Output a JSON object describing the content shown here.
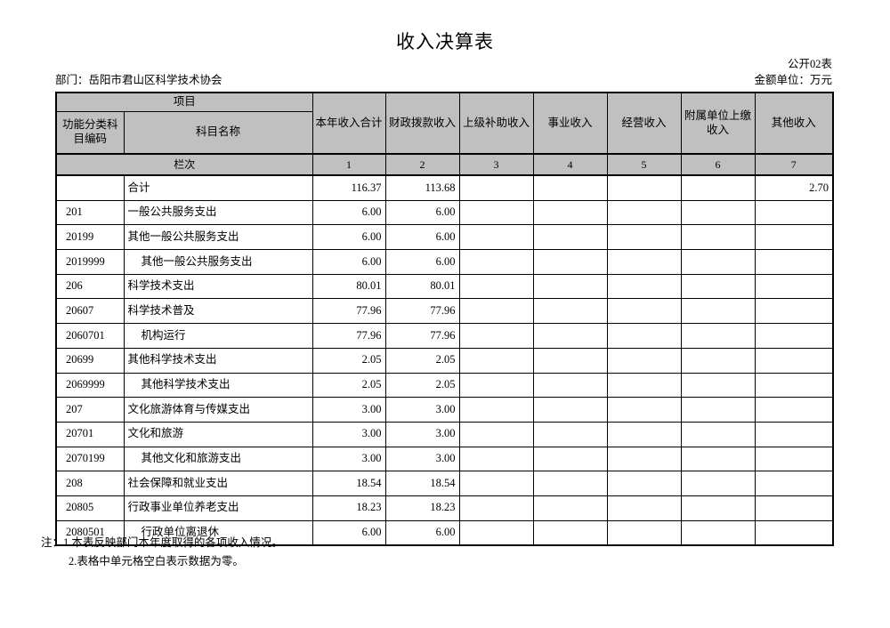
{
  "page": {
    "title": "收入决算表",
    "table_code": "公开02表",
    "department_label": "部门：岳阳市君山区科学技术协会",
    "unit_label": "金额单位：万元"
  },
  "colors": {
    "header_bg": "#c0c0c0",
    "border": "#000000",
    "page_bg": "#ffffff"
  },
  "table": {
    "header": {
      "project": "项目",
      "code_col": "功能分类科目编码",
      "name_col": "科目名称",
      "data_cols": [
        "本年收入合计",
        "财政拨款收入",
        "上级补助收入",
        "事业收入",
        "经营收入",
        "附属单位上缴收入",
        "其他收入"
      ],
      "row_index_label": "栏次",
      "col_indexes": [
        "1",
        "2",
        "3",
        "4",
        "5",
        "6",
        "7"
      ]
    },
    "rows": [
      {
        "code": "",
        "name": "合计",
        "indent": false,
        "values": [
          "116.37",
          "113.68",
          "",
          "",
          "",
          "",
          "2.70"
        ]
      },
      {
        "code": "201",
        "name": "一般公共服务支出",
        "indent": false,
        "values": [
          "6.00",
          "6.00",
          "",
          "",
          "",
          "",
          ""
        ]
      },
      {
        "code": "20199",
        "name": "其他一般公共服务支出",
        "indent": false,
        "values": [
          "6.00",
          "6.00",
          "",
          "",
          "",
          "",
          ""
        ]
      },
      {
        "code": "2019999",
        "name": "其他一般公共服务支出",
        "indent": true,
        "values": [
          "6.00",
          "6.00",
          "",
          "",
          "",
          "",
          ""
        ]
      },
      {
        "code": "206",
        "name": "科学技术支出",
        "indent": false,
        "values": [
          "80.01",
          "80.01",
          "",
          "",
          "",
          "",
          ""
        ]
      },
      {
        "code": "20607",
        "name": "科学技术普及",
        "indent": false,
        "values": [
          "77.96",
          "77.96",
          "",
          "",
          "",
          "",
          ""
        ]
      },
      {
        "code": "2060701",
        "name": "机构运行",
        "indent": true,
        "values": [
          "77.96",
          "77.96",
          "",
          "",
          "",
          "",
          ""
        ]
      },
      {
        "code": "20699",
        "name": "其他科学技术支出",
        "indent": false,
        "values": [
          "2.05",
          "2.05",
          "",
          "",
          "",
          "",
          ""
        ]
      },
      {
        "code": "2069999",
        "name": "其他科学技术支出",
        "indent": true,
        "values": [
          "2.05",
          "2.05",
          "",
          "",
          "",
          "",
          ""
        ]
      },
      {
        "code": "207",
        "name": "文化旅游体育与传媒支出",
        "indent": false,
        "values": [
          "3.00",
          "3.00",
          "",
          "",
          "",
          "",
          ""
        ]
      },
      {
        "code": "20701",
        "name": "文化和旅游",
        "indent": false,
        "values": [
          "3.00",
          "3.00",
          "",
          "",
          "",
          "",
          ""
        ]
      },
      {
        "code": "2070199",
        "name": "其他文化和旅游支出",
        "indent": true,
        "values": [
          "3.00",
          "3.00",
          "",
          "",
          "",
          "",
          ""
        ]
      },
      {
        "code": "208",
        "name": "社会保障和就业支出",
        "indent": false,
        "values": [
          "18.54",
          "18.54",
          "",
          "",
          "",
          "",
          ""
        ]
      },
      {
        "code": "20805",
        "name": "行政事业单位养老支出",
        "indent": false,
        "values": [
          "18.23",
          "18.23",
          "",
          "",
          "",
          "",
          ""
        ]
      },
      {
        "code": "2080501",
        "name": "行政单位离退休",
        "indent": true,
        "values": [
          "6.00",
          "6.00",
          "",
          "",
          "",
          "",
          ""
        ]
      }
    ]
  },
  "notes": {
    "line1": "注：1.本表反映部门本年度取得的各项收入情况。",
    "line2": "2.表格中单元格空白表示数据为零。"
  }
}
